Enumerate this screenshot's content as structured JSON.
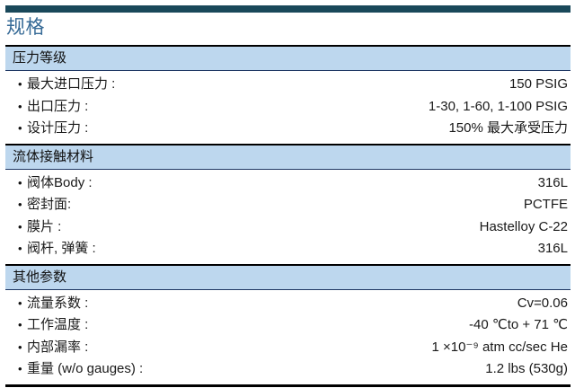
{
  "page": {
    "title": "规格"
  },
  "bullet": "•",
  "colors": {
    "accent_bar": "#19485a",
    "title_blue": "#366a96",
    "section_band_bg": "#bdd7ee",
    "section_band_border_top": "#000000",
    "section_band_border_bottom": "#1f3864",
    "text": "#1a1a1a"
  },
  "sections": [
    {
      "header": "压力等级",
      "rows": [
        {
          "label": "最大进口压力 :",
          "value": "150 PSIG"
        },
        {
          "label": "出口压力 :",
          "value": "1-30, 1-60, 1-100 PSIG"
        },
        {
          "label": "设计压力 :",
          "value": "150% 最大承受压力"
        }
      ]
    },
    {
      "header": "流体接触材料",
      "rows": [
        {
          "label": "阀体Body :",
          "value": "316L"
        },
        {
          "label": "密封面:",
          "value": "PCTFE"
        },
        {
          "label": "膜片 :",
          "value": "Hastelloy C-22"
        },
        {
          "label": "阀杆, 弹簧 :",
          "value": "316L"
        }
      ]
    },
    {
      "header": "其他参数",
      "rows": [
        {
          "label": "流量系数 :",
          "value": "Cv=0.06"
        },
        {
          "label": "工作温度 :",
          "value": "-40 ℃to + 71 ℃"
        },
        {
          "label": "内部漏率 :",
          "value": "1 ×10⁻⁹ atm cc/sec He"
        },
        {
          "label": "重量 (w/o gauges) :",
          "value": "1.2 lbs (530g)"
        }
      ]
    }
  ]
}
